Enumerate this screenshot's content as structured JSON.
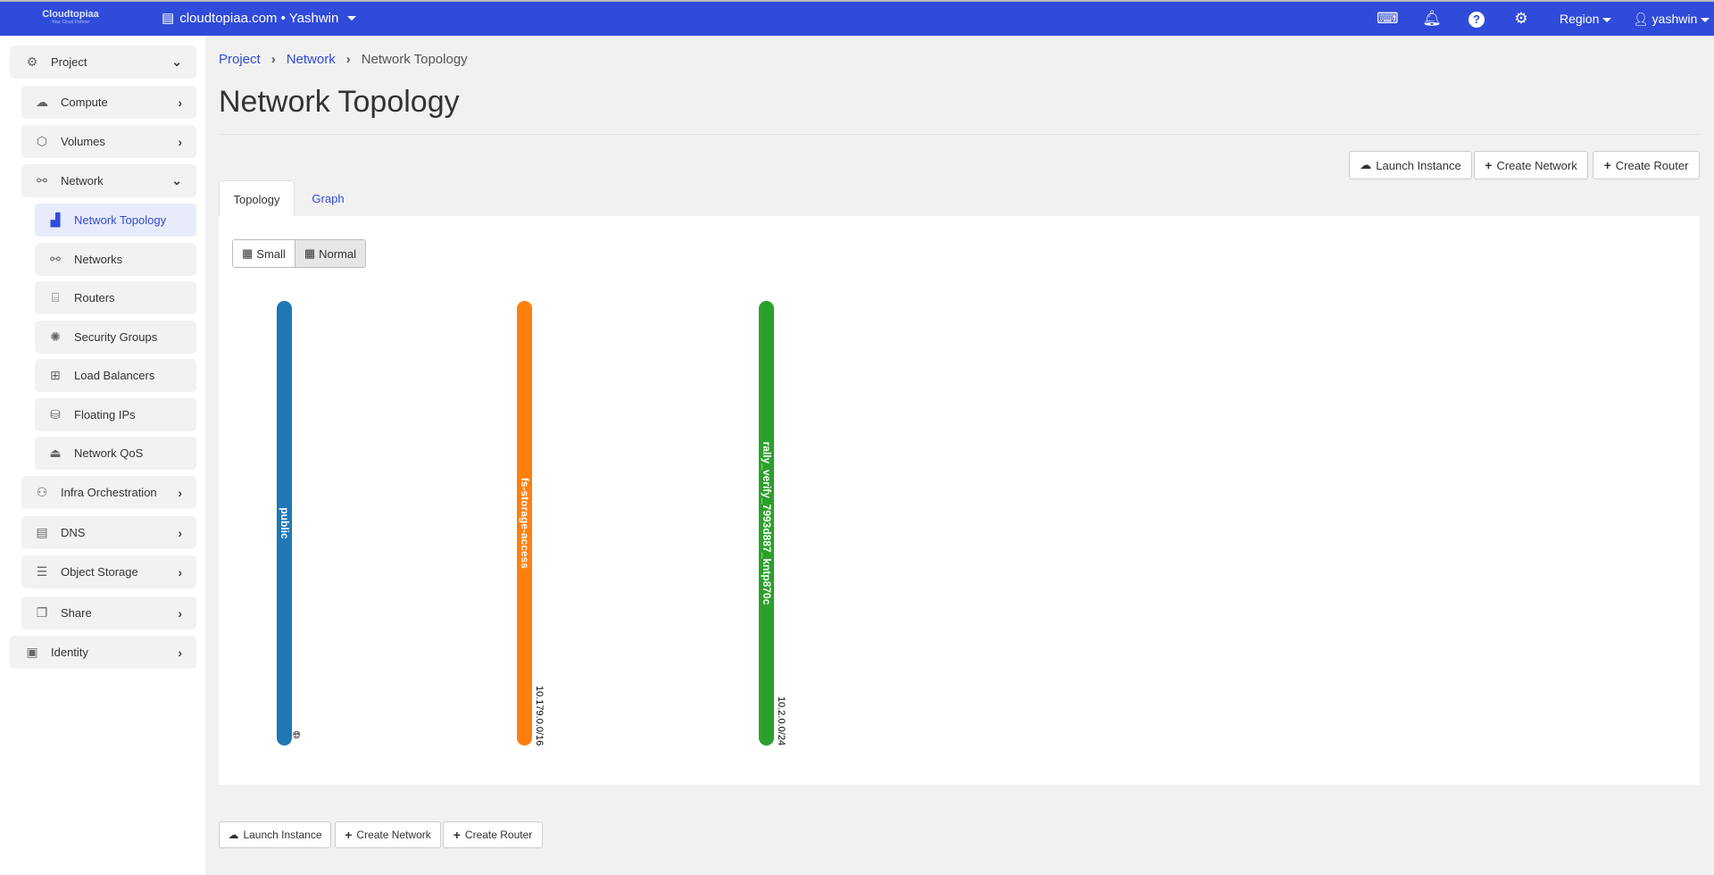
{
  "topbar": {
    "logo": "Cloudtopiaa",
    "logo_tagline": "Your Cloud Partner",
    "project": "cloudtopiaa.com • Yashwin",
    "region": "Region",
    "user": "yashwin",
    "icons": [
      "console-icon",
      "bell-icon",
      "help-icon",
      "gear-icon"
    ]
  },
  "sidebar": {
    "items": [
      {
        "label": "Project",
        "icon": "project-icon",
        "chevron": "down"
      },
      {
        "label": "Compute",
        "icon": "cloud-icon",
        "chevron": "right"
      },
      {
        "label": "Volumes",
        "icon": "volume-icon",
        "chevron": "right"
      },
      {
        "label": "Network",
        "icon": "network-icon",
        "chevron": "down"
      },
      {
        "label": "Network Topology",
        "icon": "topology-icon",
        "active": true
      },
      {
        "label": "Networks",
        "icon": "networks-icon"
      },
      {
        "label": "Routers",
        "icon": "router-icon"
      },
      {
        "label": "Security Groups",
        "icon": "security-icon"
      },
      {
        "label": "Load Balancers",
        "icon": "sitemap-icon"
      },
      {
        "label": "Floating IPs",
        "icon": "floating-ip-icon"
      },
      {
        "label": "Network QoS",
        "icon": "qos-icon"
      },
      {
        "label": "Infra Orchestration",
        "icon": "orchestration-icon",
        "chevron": "right"
      },
      {
        "label": "DNS",
        "icon": "server-icon",
        "chevron": "right"
      },
      {
        "label": "Object Storage",
        "icon": "list-icon",
        "chevron": "right"
      },
      {
        "label": "Share",
        "icon": "copy-icon",
        "chevron": "right"
      },
      {
        "label": "Identity",
        "icon": "id-badge-icon",
        "chevron": "right"
      }
    ]
  },
  "breadcrumb": [
    "Project",
    "Network",
    "Network Topology"
  ],
  "page_title": "Network Topology",
  "actions": {
    "launch": "Launch Instance",
    "create_network": "Create Network",
    "create_router": "Create Router"
  },
  "tabs": [
    "Topology",
    "Graph"
  ],
  "view_toggle": {
    "small": "Small",
    "normal": "Normal",
    "selected": "Normal"
  },
  "networks": [
    {
      "name": "public",
      "cidr": "",
      "color": "#1f77b4",
      "external": true
    },
    {
      "name": "fs-storage-access",
      "cidr": "10.179.0.0/16",
      "color": "#ff7f0e"
    },
    {
      "name": "rally_verify_7993d887_kntp870c",
      "cidr": "10.2.0.0/24",
      "color": "#2ca02c"
    }
  ]
}
